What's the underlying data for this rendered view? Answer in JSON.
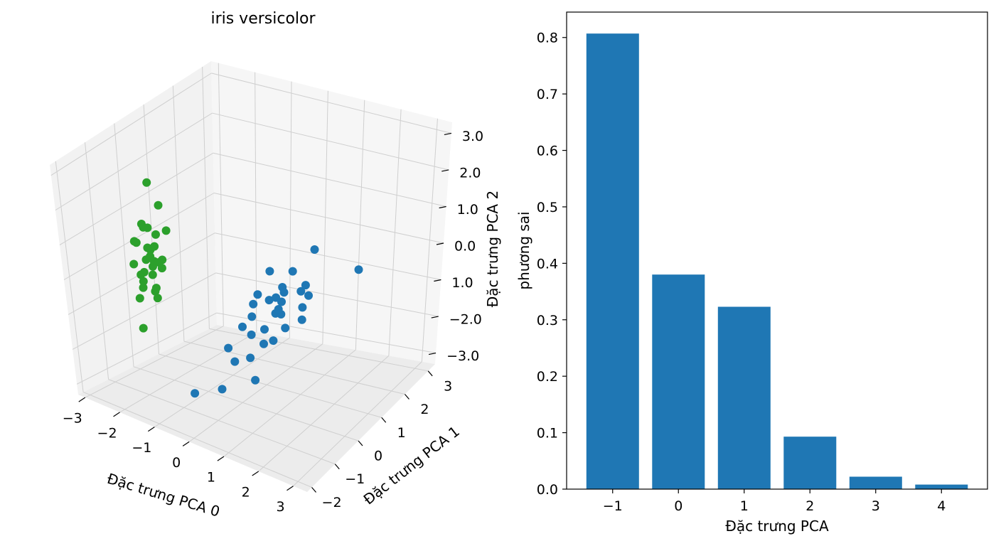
{
  "chart_data": [
    {
      "type": "scatter",
      "projection": "3d",
      "title": "iris versicolor",
      "xlabel": "Đặc trưng PCA 0",
      "ylabel": "Đặc trưng PCA 1",
      "zlabel": "Đặc trưng PCA 2",
      "x_ticks": [
        "−3",
        "−2",
        "−1",
        "0",
        "1",
        "2",
        "3"
      ],
      "y_ticks": [
        "−2",
        "−1",
        "0",
        "1",
        "2",
        "3"
      ],
      "z_ticks": [
        "−3.0",
        "−2.0",
        "1.0",
        "0.0",
        "1.0",
        "2.0",
        "3.0"
      ],
      "grid": true,
      "series": [
        {
          "color": "#2ca02c",
          "points": [
            [
              -2.6,
              0.2,
              1.8
            ],
            [
              -2.4,
              0.3,
              1.2
            ],
            [
              -2.5,
              -0.2,
              0.9
            ],
            [
              -2.7,
              0.1,
              0.6
            ],
            [
              -2.3,
              0.4,
              0.5
            ],
            [
              -2.6,
              -0.3,
              0.4
            ],
            [
              -2.9,
              0.0,
              0.2
            ],
            [
              -2.5,
              0.2,
              0.1
            ],
            [
              -2.4,
              -0.1,
              0.0
            ],
            [
              -2.7,
              0.3,
              -0.1
            ],
            [
              -2.6,
              0.0,
              -0.2
            ],
            [
              -2.3,
              0.2,
              -0.2
            ],
            [
              -2.8,
              -0.2,
              -0.3
            ],
            [
              -2.5,
              0.1,
              -0.4
            ],
            [
              -2.4,
              0.3,
              -0.5
            ],
            [
              -2.7,
              -0.1,
              -0.6
            ],
            [
              -2.6,
              0.2,
              -0.7
            ],
            [
              -2.5,
              -0.3,
              -0.8
            ],
            [
              -2.8,
              0.1,
              -0.9
            ],
            [
              -2.4,
              0.0,
              -1.0
            ],
            [
              -2.6,
              0.3,
              -1.1
            ],
            [
              -2.7,
              -0.2,
              -1.2
            ],
            [
              -2.5,
              0.2,
              -1.3
            ],
            [
              -2.9,
              0.1,
              -2.2
            ],
            [
              -2.3,
              -0.1,
              -0.1
            ],
            [
              -2.6,
              0.4,
              0.3
            ],
            [
              -2.4,
              0.2,
              -0.3
            ],
            [
              -2.5,
              0.0,
              0.7
            ],
            [
              -2.7,
              0.2,
              0.0
            ],
            [
              -2.6,
              -0.1,
              -0.5
            ]
          ]
        },
        {
          "color": "#1f77b4",
          "points": [
            [
              1.8,
              0.4,
              1.3
            ],
            [
              2.6,
              1.0,
              0.6
            ],
            [
              1.0,
              -0.2,
              0.8
            ],
            [
              1.2,
              0.0,
              0.3
            ],
            [
              0.8,
              -0.4,
              0.2
            ],
            [
              1.5,
              0.3,
              0.1
            ],
            [
              0.9,
              -0.1,
              -0.1
            ],
            [
              1.1,
              0.1,
              -0.2
            ],
            [
              1.3,
              -0.2,
              -0.3
            ],
            [
              0.7,
              -0.5,
              -0.4
            ],
            [
              1.0,
              0.0,
              -0.5
            ],
            [
              1.6,
              0.2,
              -0.6
            ],
            [
              0.5,
              -0.6,
              -0.7
            ],
            [
              0.9,
              -0.3,
              -0.8
            ],
            [
              1.2,
              0.1,
              -0.9
            ],
            [
              0.6,
              -0.4,
              -1.0
            ],
            [
              1.4,
              0.5,
              -0.5
            ],
            [
              0.3,
              -0.9,
              -1.2
            ],
            [
              0.8,
              -0.2,
              -1.3
            ],
            [
              0.4,
              -0.8,
              -1.6
            ],
            [
              0.7,
              -0.6,
              -1.5
            ],
            [
              1.0,
              -0.1,
              -1.2
            ],
            [
              -0.2,
              -1.6,
              -2.3
            ],
            [
              0.3,
              -1.2,
              -2.2
            ],
            [
              0.9,
              -0.7,
              -2.0
            ],
            [
              1.1,
              0.2,
              0.0
            ],
            [
              1.3,
              -0.3,
              -0.1
            ],
            [
              0.8,
              0.3,
              -0.3
            ],
            [
              1.5,
              0.6,
              -0.2
            ],
            [
              1.7,
              0.2,
              0.4
            ],
            [
              1.2,
              0.4,
              0.5
            ],
            [
              0.6,
              -0.3,
              -0.2
            ]
          ]
        }
      ]
    },
    {
      "type": "bar",
      "title": "",
      "xlabel": "Đặc trưng PCA",
      "ylabel": "phương sai",
      "categories": [
        "−1",
        "0",
        "1",
        "2",
        "3",
        "4"
      ],
      "values": [
        0.807,
        0.38,
        0.323,
        0.093,
        0.022,
        0.008
      ],
      "ylim": [
        0.0,
        0.845
      ],
      "yticks": [
        "0.0",
        "0.1",
        "0.2",
        "0.3",
        "0.4",
        "0.5",
        "0.6",
        "0.7",
        "0.8"
      ],
      "bar_color": "#1f77b4",
      "grid": false
    }
  ]
}
